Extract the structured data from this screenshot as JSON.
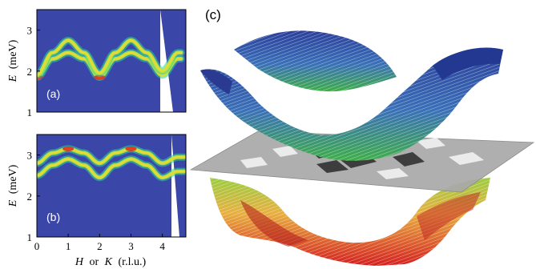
{
  "panels": {
    "a": {
      "label": "(a)",
      "ylabel_var": "E",
      "ylabel_unit": "(meV)",
      "yticks": [
        "1",
        "2",
        "3"
      ],
      "ylim": [
        1,
        3.5
      ]
    },
    "b": {
      "label": "(b)",
      "ylabel_var": "E",
      "ylabel_unit": "(meV)",
      "yticks": [
        "1",
        "2",
        "3"
      ],
      "ylim": [
        1,
        3.5
      ]
    },
    "c": {
      "label": "(c)"
    }
  },
  "xaxis": {
    "label_h": "H",
    "label_or": "or",
    "label_k": "K",
    "label_unit": "(r.l.u.)",
    "ticks": [
      "0",
      "1",
      "2",
      "3",
      "4"
    ],
    "xlim": [
      0,
      4.75
    ]
  },
  "colors": {
    "background": "#3a46a8",
    "band_low": "#2ad4a0",
    "band_mid": "#e6e640",
    "band_high": "#e03020",
    "surface_top": "#2b3f9a",
    "surface_bottom": "#d42020",
    "plane": "#a8a8a8"
  },
  "chart_data": [
    {
      "type": "heatmap",
      "panel": "a",
      "ylim": [
        1,
        3.5
      ],
      "xlim": [
        0,
        4.75
      ],
      "series": [
        {
          "x": [
            0,
            0.5,
            1,
            1.5,
            2,
            2.5,
            3,
            3.5,
            4,
            4.5
          ],
          "y": [
            1.85,
            2.3,
            2.45,
            2.3,
            1.85,
            2.3,
            2.45,
            2.3,
            1.9,
            2.3
          ]
        },
        {
          "x": [
            0,
            0.5,
            1,
            1.5,
            2,
            2.5,
            3,
            3.5,
            4,
            4.5
          ],
          "y": [
            1.9,
            2.45,
            2.75,
            2.45,
            1.95,
            2.45,
            2.75,
            2.45,
            2.0,
            2.45
          ]
        }
      ]
    },
    {
      "type": "heatmap",
      "panel": "b",
      "ylim": [
        1,
        3.5
      ],
      "xlim": [
        0,
        4.75
      ],
      "series": [
        {
          "x": [
            0,
            0.5,
            1,
            1.5,
            2,
            2.5,
            3,
            3.5,
            4,
            4.5
          ],
          "y": [
            2.8,
            3.05,
            3.15,
            3.05,
            2.8,
            3.05,
            3.15,
            3.05,
            2.8,
            2.95
          ]
        },
        {
          "x": [
            0,
            0.5,
            1,
            1.5,
            2,
            2.5,
            3,
            3.5,
            4,
            4.5
          ],
          "y": [
            2.5,
            2.75,
            2.9,
            2.75,
            2.45,
            2.75,
            2.9,
            2.75,
            2.45,
            2.6
          ]
        }
      ]
    }
  ]
}
